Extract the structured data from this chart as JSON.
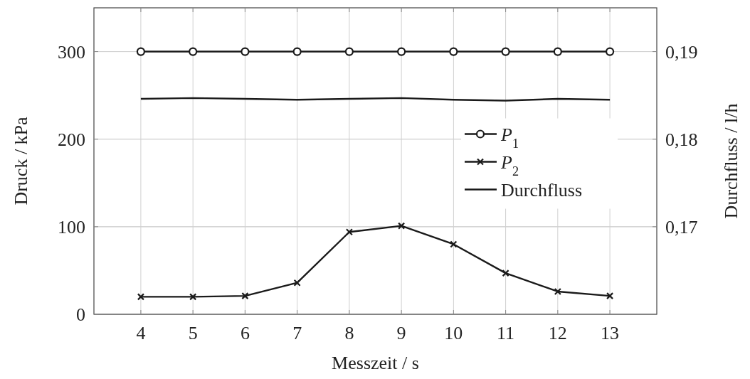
{
  "chart_data": {
    "type": "line",
    "xlabel": "Messzeit / s",
    "ylabel": "Druck / kPa",
    "y2label": "Durchfluss / l/h",
    "x": [
      4,
      5,
      6,
      7,
      8,
      9,
      10,
      11,
      12,
      13
    ],
    "xlim": [
      3.1,
      13.9
    ],
    "xticks": [
      4,
      5,
      6,
      7,
      8,
      9,
      10,
      11,
      12,
      13
    ],
    "ylim": [
      0,
      350
    ],
    "yticks": [
      0,
      100,
      200,
      300
    ],
    "y2lim": [
      0.16,
      0.195
    ],
    "y2ticks": [
      {
        "value": 0.17,
        "label": "0,17"
      },
      {
        "value": 0.18,
        "label": "0,18"
      },
      {
        "value": 0.19,
        "label": "0,19"
      }
    ],
    "grid": true,
    "legend": "right",
    "line_style": "solid",
    "series": [
      {
        "name": "P$_{1}$",
        "color": "#1a1a1a",
        "marker": "circle",
        "values": [
          300,
          300,
          300,
          300,
          300,
          300,
          300,
          300,
          300,
          300
        ]
      },
      {
        "name": "P$_{2}$",
        "color": "#1a1a1a",
        "marker": "cross",
        "values": [
          20,
          20,
          21,
          36,
          94,
          101,
          80,
          47,
          26,
          21
        ]
      },
      {
        "name": "Durchfluss",
        "color": "#1a1a1a",
        "marker": "none",
        "axis": "y2",
        "values": [
          0.1846,
          0.1847,
          0.1846,
          0.1845,
          0.1846,
          0.1847,
          0.1845,
          0.1844,
          0.1846,
          0.1845
        ]
      }
    ]
  }
}
